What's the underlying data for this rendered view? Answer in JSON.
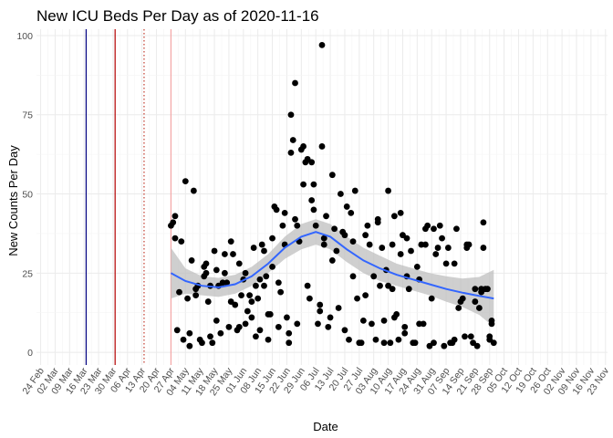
{
  "chart_data": {
    "type": "scatter",
    "title": "New ICU Beds Per Day as of 2020-11-16",
    "xlabel": "Date",
    "ylabel": "New Counts Per Day",
    "x_tick_labels": [
      "24 Feb",
      "02 Mar",
      "09 Mar",
      "16 Mar",
      "23 Mar",
      "30 Mar",
      "06 Apr",
      "13 Apr",
      "20 Apr",
      "27 Apr",
      "04 May",
      "11 May",
      "18 May",
      "25 May",
      "01 Jun",
      "08 Jun",
      "15 Jun",
      "22 Jun",
      "29 Jun",
      "06 Jul",
      "13 Jul",
      "20 Jul",
      "27 Jul",
      "03 Aug",
      "10 Aug",
      "17 Aug",
      "24 Aug",
      "31 Aug",
      "07 Sep",
      "14 Sep",
      "21 Sep",
      "28 Sep",
      "05 Oct",
      "12 Oct",
      "19 Oct",
      "26 Oct",
      "02 Nov",
      "09 Nov",
      "16 Nov",
      "23 Nov"
    ],
    "x_range_days": [
      -2,
      274
    ],
    "y_ticks": [
      0,
      25,
      50,
      75,
      100
    ],
    "ylim": [
      -4,
      102
    ],
    "grid": true,
    "colors": {
      "points": "#000000",
      "smooth": "#3366ff",
      "ribbon": "#bfbfbf",
      "vline_navy": "#000080",
      "vline_red": "#b30000",
      "vline_dotted": "#c0392b",
      "vline_pink": "#f4a6a6",
      "grid": "#ebebeb"
    },
    "reference_lines": [
      {
        "day": 22,
        "style": "solid",
        "color": "#000080"
      },
      {
        "day": 36,
        "style": "solid",
        "color": "#b30000"
      },
      {
        "day": 50,
        "style": "dotted",
        "color": "#c0392b"
      },
      {
        "day": 63,
        "style": "solid",
        "color": "#f4a6a6"
      }
    ],
    "points": [
      [
        63,
        40
      ],
      [
        64,
        41
      ],
      [
        65,
        43
      ],
      [
        65,
        36
      ],
      [
        66,
        7
      ],
      [
        67,
        19
      ],
      [
        68,
        35
      ],
      [
        69,
        4
      ],
      [
        70,
        54
      ],
      [
        71,
        17
      ],
      [
        72,
        6
      ],
      [
        72,
        2
      ],
      [
        73,
        29
      ],
      [
        74,
        51
      ],
      [
        75,
        20
      ],
      [
        75,
        18
      ],
      [
        76,
        21
      ],
      [
        77,
        4
      ],
      [
        78,
        3
      ],
      [
        79,
        27
      ],
      [
        79,
        24
      ],
      [
        80,
        25
      ],
      [
        80,
        28
      ],
      [
        81,
        16
      ],
      [
        82,
        5
      ],
      [
        82,
        21
      ],
      [
        83,
        3
      ],
      [
        84,
        32
      ],
      [
        85,
        26
      ],
      [
        85,
        10
      ],
      [
        86,
        21
      ],
      [
        87,
        6
      ],
      [
        88,
        22
      ],
      [
        89,
        31
      ],
      [
        89,
        25
      ],
      [
        90,
        22
      ],
      [
        91,
        8
      ],
      [
        92,
        16
      ],
      [
        92,
        35
      ],
      [
        93,
        31
      ],
      [
        94,
        15
      ],
      [
        95,
        7
      ],
      [
        96,
        8
      ],
      [
        96,
        28
      ],
      [
        97,
        18
      ],
      [
        98,
        23
      ],
      [
        99,
        25
      ],
      [
        99,
        9
      ],
      [
        100,
        13
      ],
      [
        101,
        18
      ],
      [
        102,
        11
      ],
      [
        102,
        16
      ],
      [
        103,
        33
      ],
      [
        104,
        5
      ],
      [
        104,
        21
      ],
      [
        105,
        17
      ],
      [
        106,
        23
      ],
      [
        106,
        7
      ],
      [
        107,
        34
      ],
      [
        108,
        21
      ],
      [
        108,
        32
      ],
      [
        109,
        24
      ],
      [
        110,
        12
      ],
      [
        110,
        4
      ],
      [
        111,
        12
      ],
      [
        112,
        27
      ],
      [
        112,
        36
      ],
      [
        113,
        46
      ],
      [
        114,
        45
      ],
      [
        115,
        22
      ],
      [
        115,
        8
      ],
      [
        116,
        19
      ],
      [
        117,
        40
      ],
      [
        118,
        34
      ],
      [
        118,
        44
      ],
      [
        119,
        11
      ],
      [
        120,
        3
      ],
      [
        120,
        6
      ],
      [
        121,
        75
      ],
      [
        121,
        63
      ],
      [
        122,
        67
      ],
      [
        123,
        85
      ],
      [
        123,
        42
      ],
      [
        124,
        40
      ],
      [
        124,
        9
      ],
      [
        125,
        35
      ],
      [
        126,
        64
      ],
      [
        127,
        65
      ],
      [
        127,
        53
      ],
      [
        128,
        60
      ],
      [
        129,
        61
      ],
      [
        129,
        21
      ],
      [
        130,
        17
      ],
      [
        131,
        60
      ],
      [
        131,
        48
      ],
      [
        132,
        53
      ],
      [
        132,
        45
      ],
      [
        133,
        40
      ],
      [
        134,
        9
      ],
      [
        135,
        13
      ],
      [
        135,
        15
      ],
      [
        136,
        97
      ],
      [
        136,
        65
      ],
      [
        137,
        34
      ],
      [
        137,
        36
      ],
      [
        138,
        43
      ],
      [
        139,
        8
      ],
      [
        140,
        11
      ],
      [
        141,
        56
      ],
      [
        141,
        29
      ],
      [
        142,
        39
      ],
      [
        143,
        32
      ],
      [
        144,
        14
      ],
      [
        145,
        50
      ],
      [
        146,
        38
      ],
      [
        147,
        37
      ],
      [
        147,
        7
      ],
      [
        148,
        46
      ],
      [
        149,
        4
      ],
      [
        150,
        44
      ],
      [
        151,
        35
      ],
      [
        151,
        24
      ],
      [
        152,
        51
      ],
      [
        153,
        17
      ],
      [
        154,
        3
      ],
      [
        155,
        3
      ],
      [
        156,
        10
      ],
      [
        157,
        37
      ],
      [
        157,
        18
      ],
      [
        158,
        40
      ],
      [
        159,
        34
      ],
      [
        160,
        9
      ],
      [
        161,
        24
      ],
      [
        162,
        4
      ],
      [
        163,
        42
      ],
      [
        163,
        41
      ],
      [
        164,
        21
      ],
      [
        165,
        33
      ],
      [
        166,
        10
      ],
      [
        166,
        3
      ],
      [
        167,
        26
      ],
      [
        168,
        21
      ],
      [
        168,
        51
      ],
      [
        169,
        3
      ],
      [
        170,
        34
      ],
      [
        170,
        20
      ],
      [
        171,
        43
      ],
      [
        171,
        11
      ],
      [
        172,
        12
      ],
      [
        173,
        4
      ],
      [
        174,
        31
      ],
      [
        174,
        44
      ],
      [
        175,
        37
      ],
      [
        176,
        8
      ],
      [
        176,
        6
      ],
      [
        177,
        36
      ],
      [
        177,
        24
      ],
      [
        178,
        20
      ],
      [
        179,
        32
      ],
      [
        180,
        3
      ],
      [
        181,
        3
      ],
      [
        182,
        27
      ],
      [
        183,
        23
      ],
      [
        183,
        9
      ],
      [
        184,
        34
      ],
      [
        185,
        9
      ],
      [
        186,
        39
      ],
      [
        186,
        34
      ],
      [
        187,
        40
      ],
      [
        188,
        2
      ],
      [
        189,
        17
      ],
      [
        190,
        39
      ],
      [
        190,
        3
      ],
      [
        191,
        31
      ],
      [
        192,
        33
      ],
      [
        193,
        40
      ],
      [
        194,
        36
      ],
      [
        195,
        2
      ],
      [
        196,
        28
      ],
      [
        197,
        33
      ],
      [
        198,
        3
      ],
      [
        199,
        3
      ],
      [
        200,
        4
      ],
      [
        200,
        28
      ],
      [
        201,
        39
      ],
      [
        202,
        14
      ],
      [
        203,
        16
      ],
      [
        204,
        17
      ],
      [
        205,
        5
      ],
      [
        206,
        33
      ],
      [
        206,
        34
      ],
      [
        207,
        34
      ],
      [
        208,
        5
      ],
      [
        209,
        3
      ],
      [
        210,
        16
      ],
      [
        210,
        20
      ],
      [
        211,
        2
      ],
      [
        212,
        14
      ],
      [
        213,
        20
      ],
      [
        213,
        19
      ],
      [
        214,
        41
      ],
      [
        214,
        33
      ],
      [
        215,
        20
      ],
      [
        216,
        20
      ],
      [
        217,
        5
      ],
      [
        217,
        4
      ],
      [
        218,
        9
      ],
      [
        218,
        10
      ],
      [
        219,
        3
      ]
    ],
    "smooth_fit": [
      [
        63,
        25
      ],
      [
        70,
        22.5
      ],
      [
        78,
        21
      ],
      [
        86,
        20.5
      ],
      [
        94,
        21.5
      ],
      [
        102,
        24
      ],
      [
        110,
        28
      ],
      [
        118,
        33
      ],
      [
        126,
        36.5
      ],
      [
        133,
        38
      ],
      [
        140,
        36.5
      ],
      [
        148,
        32.5
      ],
      [
        156,
        29
      ],
      [
        164,
        26.5
      ],
      [
        172,
        24.5
      ],
      [
        180,
        23
      ],
      [
        188,
        21.5
      ],
      [
        196,
        20
      ],
      [
        204,
        18.8
      ],
      [
        212,
        17.8
      ],
      [
        219,
        17
      ]
    ],
    "ribbon_halfwidth": [
      [
        63,
        8
      ],
      [
        70,
        4
      ],
      [
        78,
        3
      ],
      [
        86,
        3
      ],
      [
        94,
        3
      ],
      [
        102,
        3
      ],
      [
        110,
        3
      ],
      [
        118,
        3.5
      ],
      [
        126,
        4
      ],
      [
        133,
        4
      ],
      [
        140,
        4
      ],
      [
        148,
        4
      ],
      [
        156,
        4
      ],
      [
        164,
        4
      ],
      [
        172,
        3.5
      ],
      [
        180,
        3.5
      ],
      [
        188,
        3.5
      ],
      [
        196,
        4
      ],
      [
        204,
        4.5
      ],
      [
        212,
        6
      ],
      [
        219,
        9
      ]
    ]
  }
}
